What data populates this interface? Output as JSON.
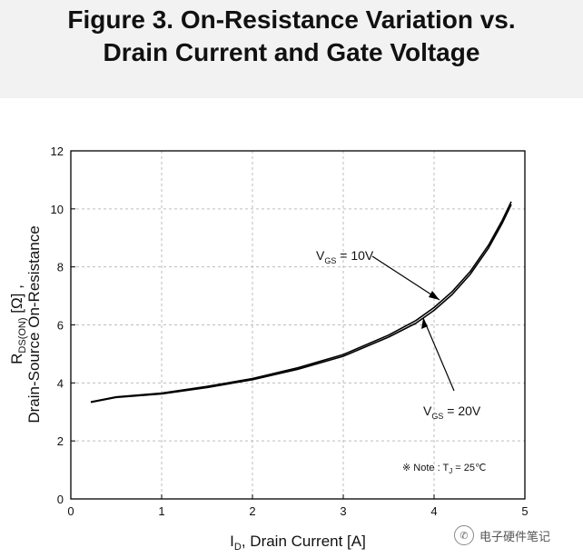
{
  "header": {
    "title_line1": "Figure 3. On-Resistance Variation vs.",
    "title_line2": "Drain Current and Gate Voltage"
  },
  "watermark": {
    "text": "电子硬件笔记",
    "icon": "wechat-icon"
  },
  "colors": {
    "curve": "#000000",
    "grid": "#bdbdbd",
    "header_bg": "#f2f2f2"
  },
  "chart_data": {
    "type": "line",
    "title": "Figure 3. On-Resistance Variation vs. Drain Current and Gate Voltage",
    "xlabel_main": "I",
    "xlabel_sub": "D",
    "xlabel_rest": ", Drain Current [A]",
    "ylabel_line1_main": "R",
    "ylabel_line1_sub": "DS(ON)",
    "ylabel_line1_rest": " [Ω] ,",
    "ylabel_line2": "Drain-Source On-Resistance",
    "xlim": [
      0,
      5
    ],
    "ylim": [
      0,
      12
    ],
    "xticks": [
      0,
      1,
      2,
      3,
      4,
      5
    ],
    "yticks": [
      0,
      2,
      4,
      6,
      8,
      10,
      12
    ],
    "grid": true,
    "series": [
      {
        "name": "VGS = 10V",
        "label_main": "V",
        "label_sub": "GS",
        "label_rest": " = 10V",
        "x": [
          0.22,
          0.5,
          1.0,
          1.5,
          2.0,
          2.5,
          3.0,
          3.5,
          3.8,
          4.0,
          4.2,
          4.4,
          4.6,
          4.75,
          4.85
        ],
        "y": [
          3.35,
          3.52,
          3.65,
          3.88,
          4.15,
          4.52,
          4.98,
          5.65,
          6.15,
          6.6,
          7.15,
          7.85,
          8.75,
          9.6,
          10.25
        ]
      },
      {
        "name": "VGS = 20V",
        "label_main": "V",
        "label_sub": "GS",
        "label_rest": " = 20V",
        "x": [
          0.22,
          0.5,
          1.0,
          1.5,
          2.0,
          2.5,
          3.0,
          3.5,
          3.8,
          4.0,
          4.2,
          4.4,
          4.6,
          4.75,
          4.85
        ],
        "y": [
          3.33,
          3.5,
          3.62,
          3.84,
          4.11,
          4.47,
          4.92,
          5.58,
          6.06,
          6.5,
          7.05,
          7.75,
          8.65,
          9.5,
          10.15
        ]
      }
    ],
    "annotations": {
      "note_symbol": "※",
      "note_main": " Note : T",
      "note_sub": "J",
      "note_rest": " = 25℃"
    }
  }
}
